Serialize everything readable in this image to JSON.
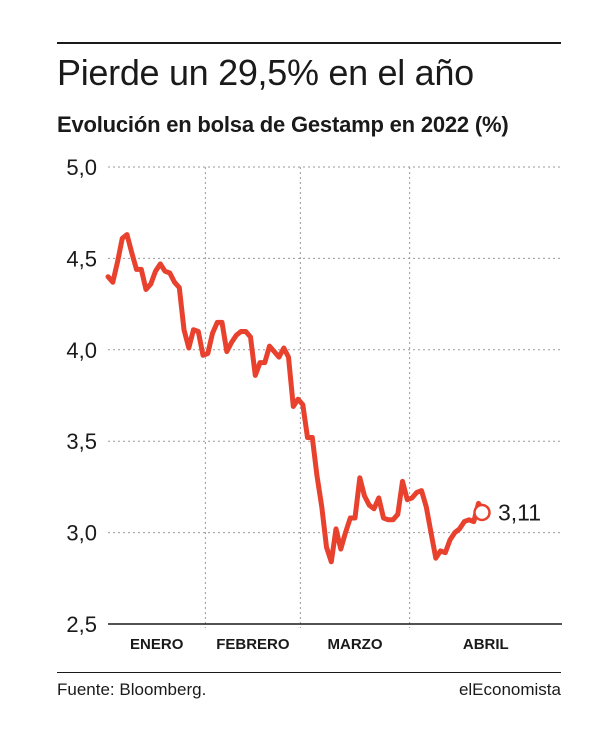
{
  "header": {
    "title": "Pierde un 29,5% en el año",
    "subtitle": "Evolución en bolsa de Gestamp en 2022 (%)"
  },
  "footer": {
    "source": "Fuente: Bloomberg.",
    "brand": "elEconomista"
  },
  "colors": {
    "line": "#e8422f",
    "grid": "#9a9a9a",
    "text": "#1a1a1a"
  },
  "chart_data": {
    "type": "line",
    "title": "Pierde un 29,5% en el año",
    "subtitle": "Evolución en bolsa de Gestamp en 2022 (%)",
    "xlabel": "",
    "ylabel": "",
    "ylim": [
      2.5,
      5.0
    ],
    "yticks": [
      5.0,
      4.5,
      4.0,
      3.5,
      3.0,
      2.5
    ],
    "ytick_labels": [
      "5,0",
      "4,5",
      "4,0",
      "3,5",
      "3,0",
      "2,5"
    ],
    "months": [
      "ENERO",
      "FEBRERO",
      "MARZO",
      "ABRIL"
    ],
    "month_trading_days": [
      21,
      20,
      23,
      18
    ],
    "grid": "dotted",
    "last_value_label": "3,11",
    "series": [
      {
        "values": [
          4.4,
          4.37,
          4.48,
          4.61,
          4.63,
          4.53,
          4.44,
          4.44,
          4.33,
          4.36,
          4.43,
          4.47,
          4.43,
          4.42,
          4.37,
          4.34,
          4.11,
          4.01,
          4.11,
          4.1,
          3.97,
          3.98,
          4.09,
          4.15,
          4.15,
          3.99,
          4.04,
          4.08,
          4.1,
          4.1,
          4.07,
          3.86,
          3.93,
          3.93,
          4.02,
          3.99,
          3.96,
          4.01,
          3.96,
          3.69,
          3.73,
          3.7,
          3.52,
          3.52,
          3.31,
          3.14,
          2.92,
          2.84,
          3.02,
          2.91,
          3.0,
          3.08,
          3.08,
          3.3,
          3.2,
          3.15,
          3.13,
          3.19,
          3.08,
          3.07,
          3.07,
          3.1,
          3.28,
          3.18,
          3.19,
          3.22,
          3.23,
          3.14,
          3.0,
          2.86,
          2.9,
          2.89,
          2.96,
          3.0,
          3.02,
          3.06,
          3.07,
          3.06,
          3.16,
          3.12,
          3.11
        ]
      }
    ]
  }
}
